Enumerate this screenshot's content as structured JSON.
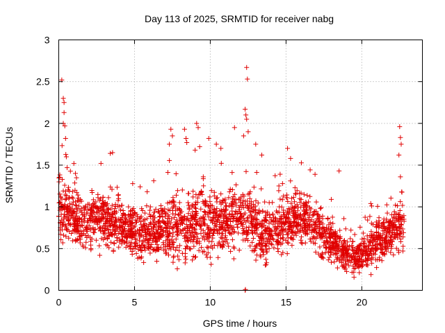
{
  "chart_data": {
    "type": "scatter",
    "title": "Day 113 of 2025, SRMTID for receiver nabg",
    "xlabel": "GPS time / hours",
    "ylabel": "SRMTID / TECUs",
    "xlim": [
      0,
      24
    ],
    "ylim": [
      0,
      3
    ],
    "xticks": [
      0,
      5,
      10,
      15,
      20
    ],
    "xtick_labels": [
      "0",
      "5",
      "10",
      "15",
      "20"
    ],
    "yticks": [
      0,
      0.5,
      1,
      1.5,
      2,
      2.5,
      3
    ],
    "ytick_labels": [
      "0",
      "0.5",
      "1",
      "1.5",
      "2",
      "2.5",
      "3"
    ],
    "grid": true,
    "marker": "+",
    "color": "#e00000",
    "envelope_hours": [
      0,
      0.5,
      1,
      1.5,
      2,
      2.5,
      3,
      3.5,
      4,
      4.5,
      5,
      5.5,
      6,
      6.5,
      7,
      7.5,
      8,
      8.5,
      9,
      9.5,
      10,
      10.5,
      11,
      11.5,
      12,
      12.5,
      13,
      13.5,
      14,
      14.5,
      15,
      15.5,
      16,
      16.5,
      17,
      17.5,
      18,
      18.5,
      19,
      19.5,
      20,
      20.5,
      21,
      21.5,
      22,
      22.5,
      22.8
    ],
    "envelope_low": [
      0.45,
      0.5,
      0.45,
      0.4,
      0.45,
      0.5,
      0.45,
      0.45,
      0.45,
      0.4,
      0.35,
      0.3,
      0.35,
      0.35,
      0.35,
      0.3,
      0.3,
      0.25,
      0.3,
      0.35,
      0.35,
      0.4,
      0.45,
      0.45,
      0.5,
      0.45,
      0.3,
      0.3,
      0.35,
      0.4,
      0.45,
      0.5,
      0.5,
      0.45,
      0.4,
      0.3,
      0.3,
      0.25,
      0.2,
      0.2,
      0.2,
      0.25,
      0.3,
      0.35,
      0.4,
      0.45,
      0.5
    ],
    "envelope_high": [
      1.6,
      1.4,
      1.3,
      1.2,
      1.2,
      1.3,
      1.3,
      1.2,
      1.2,
      1.2,
      1.1,
      1.05,
      1.05,
      1.1,
      1.2,
      1.3,
      1.25,
      1.2,
      1.35,
      1.4,
      1.35,
      1.3,
      1.25,
      1.3,
      1.4,
      1.3,
      1.2,
      1.1,
      1.1,
      1.15,
      1.2,
      1.3,
      1.35,
      1.25,
      1.15,
      1.0,
      0.95,
      0.85,
      0.7,
      0.7,
      0.75,
      0.85,
      0.95,
      1.0,
      1.05,
      1.1,
      1.1
    ],
    "spike_points": [
      {
        "x": 0.2,
        "y": 2.52
      },
      {
        "x": 0.3,
        "y": 2.3
      },
      {
        "x": 0.35,
        "y": 2.25
      },
      {
        "x": 0.3,
        "y": 2.0
      },
      {
        "x": 0.35,
        "y": 2.13
      },
      {
        "x": 0.4,
        "y": 1.97
      },
      {
        "x": 0.45,
        "y": 1.82
      },
      {
        "x": 0.5,
        "y": 1.6
      },
      {
        "x": 0.55,
        "y": 1.47
      },
      {
        "x": 1.0,
        "y": 1.52
      },
      {
        "x": 1.1,
        "y": 1.4
      },
      {
        "x": 3.4,
        "y": 1.64
      },
      {
        "x": 3.55,
        "y": 1.65
      },
      {
        "x": 7.4,
        "y": 1.93
      },
      {
        "x": 7.5,
        "y": 1.85
      },
      {
        "x": 7.3,
        "y": 1.75
      },
      {
        "x": 8.3,
        "y": 1.93
      },
      {
        "x": 8.4,
        "y": 1.82
      },
      {
        "x": 8.45,
        "y": 1.77
      },
      {
        "x": 9.1,
        "y": 2.0
      },
      {
        "x": 9.2,
        "y": 1.95
      },
      {
        "x": 9.0,
        "y": 1.68
      },
      {
        "x": 9.3,
        "y": 1.72
      },
      {
        "x": 9.9,
        "y": 1.82
      },
      {
        "x": 10.4,
        "y": 1.75
      },
      {
        "x": 10.7,
        "y": 1.7
      },
      {
        "x": 11.6,
        "y": 1.95
      },
      {
        "x": 12.2,
        "y": 1.85
      },
      {
        "x": 12.4,
        "y": 2.67
      },
      {
        "x": 12.45,
        "y": 2.53
      },
      {
        "x": 12.3,
        "y": 2.17
      },
      {
        "x": 12.35,
        "y": 2.1
      },
      {
        "x": 12.4,
        "y": 2.05
      },
      {
        "x": 12.5,
        "y": 1.9
      },
      {
        "x": 13.0,
        "y": 1.75
      },
      {
        "x": 13.4,
        "y": 1.62
      },
      {
        "x": 15.1,
        "y": 1.7
      },
      {
        "x": 15.3,
        "y": 1.58
      },
      {
        "x": 18.5,
        "y": 1.43
      },
      {
        "x": 22.5,
        "y": 1.96
      },
      {
        "x": 22.55,
        "y": 1.83
      },
      {
        "x": 22.6,
        "y": 1.75
      },
      {
        "x": 22.45,
        "y": 1.62
      },
      {
        "x": 22.55,
        "y": 1.36
      },
      {
        "x": 12.3,
        "y": 0.0
      },
      {
        "x": 12.32,
        "y": 0.01
      }
    ]
  }
}
